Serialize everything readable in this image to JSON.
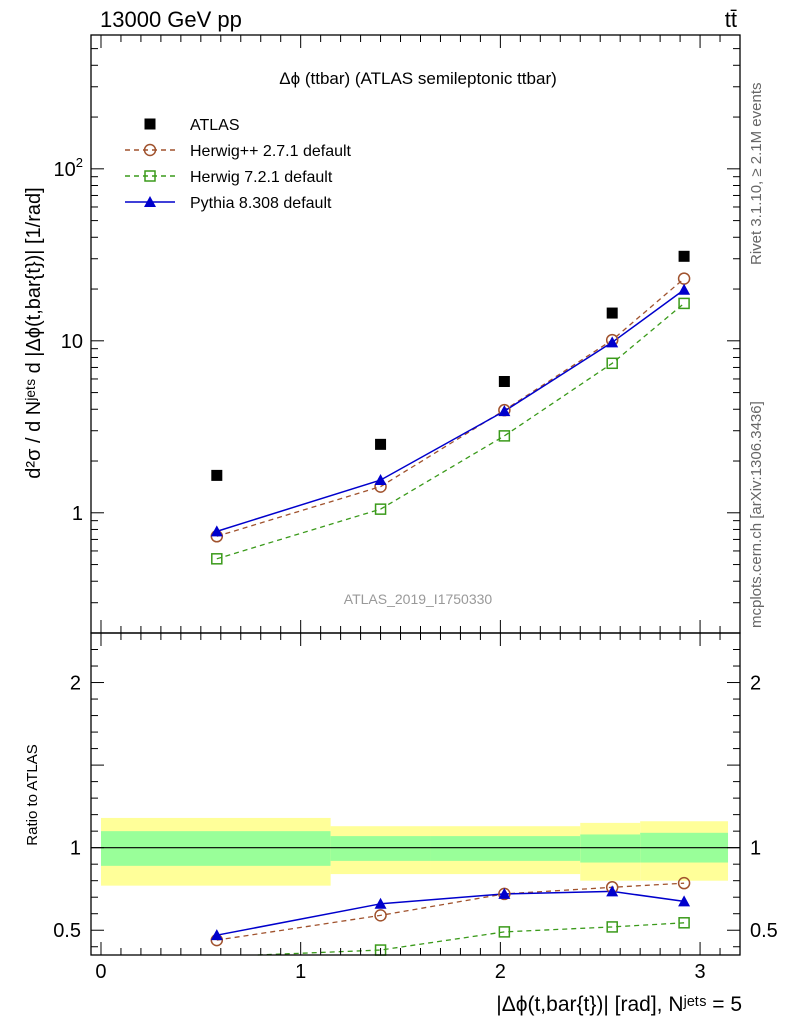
{
  "header": {
    "left": "13000 GeV pp",
    "right": "tt̄"
  },
  "side_labels": {
    "top": "Rivet 3.1.10, ≥ 2.1M events",
    "bottom": "mcplots.cern.ch [arXiv:1306.3436]"
  },
  "chart_data": [
    {
      "type": "scatter",
      "title": "Δϕ (ttbar) (ATLAS semileptonic ttbar)",
      "watermark": "ATLAS_2019_I1750330",
      "ylabel": "d²σ / d Nʲᵉᵗˢ d |Δϕ(t,bar{t})| [1/rad]",
      "xlim": [
        -0.05,
        3.2
      ],
      "ylim": [
        0.2,
        600
      ],
      "yscale": "log",
      "yticks": [
        {
          "v": 1,
          "label": "1"
        },
        {
          "v": 10,
          "label": "10"
        },
        {
          "v": 100,
          "label": "10²"
        }
      ],
      "legend_position": "top-left",
      "series": [
        {
          "name": "ATLAS",
          "marker": "filled-square",
          "color": "#000000",
          "line": "none",
          "x": [
            0.58,
            1.4,
            2.02,
            2.56,
            2.92
          ],
          "y": [
            1.65,
            2.5,
            5.8,
            14.5,
            31
          ]
        },
        {
          "name": "Herwig++ 2.7.1 default",
          "marker": "open-circle",
          "color": "#a0522d",
          "line": "dashed",
          "x": [
            0.58,
            1.4,
            2.02,
            2.56,
            2.92
          ],
          "y": [
            0.73,
            1.42,
            3.95,
            10.1,
            23
          ]
        },
        {
          "name": "Herwig 7.2.1 default",
          "marker": "open-square",
          "color": "#3a9a1a",
          "line": "dashed",
          "x": [
            0.58,
            1.4,
            2.02,
            2.56,
            2.92
          ],
          "y": [
            0.54,
            1.05,
            2.8,
            7.4,
            16.5
          ]
        },
        {
          "name": "Pythia 8.308 default",
          "marker": "filled-triangle",
          "color": "#0000cc",
          "line": "solid",
          "x": [
            0.58,
            1.4,
            2.02,
            2.56,
            2.92
          ],
          "y": [
            0.78,
            1.55,
            3.9,
            9.8,
            19.8
          ]
        }
      ]
    },
    {
      "type": "scatter",
      "ylabel": "Ratio to ATLAS",
      "xlabel": "|Δϕ(t,bar{t})| [rad], Nʲᵉᵗˢ = 5",
      "xlim": [
        -0.05,
        3.2
      ],
      "ylim": [
        0.35,
        2.3
      ],
      "yticks": [
        {
          "v": 0.5,
          "label": "0.5"
        },
        {
          "v": 1,
          "label": "1"
        },
        {
          "v": 2,
          "label": "2"
        }
      ],
      "xticks": [
        {
          "v": 0,
          "label": "0"
        },
        {
          "v": 1,
          "label": "1"
        },
        {
          "v": 2,
          "label": "2"
        },
        {
          "v": 3,
          "label": "3"
        }
      ],
      "reference_line": 1,
      "bands": [
        {
          "x0": 0,
          "x1": 1.15,
          "yellow": [
            0.77,
            1.18
          ],
          "green": [
            0.89,
            1.1
          ]
        },
        {
          "x0": 1.15,
          "x1": 1.65,
          "yellow": [
            0.84,
            1.13
          ],
          "green": [
            0.92,
            1.07
          ]
        },
        {
          "x0": 1.65,
          "x1": 2.4,
          "yellow": [
            0.84,
            1.13
          ],
          "green": [
            0.92,
            1.07
          ]
        },
        {
          "x0": 2.4,
          "x1": 2.7,
          "yellow": [
            0.8,
            1.15
          ],
          "green": [
            0.91,
            1.08
          ]
        },
        {
          "x0": 2.7,
          "x1": 3.14,
          "yellow": [
            0.8,
            1.16
          ],
          "green": [
            0.91,
            1.09
          ]
        }
      ],
      "series": [
        {
          "name": "Herwig++ 2.7.1 default",
          "marker": "open-circle",
          "color": "#a0522d",
          "line": "dashed",
          "x": [
            0.58,
            1.4,
            2.02,
            2.56,
            2.92
          ],
          "y": [
            0.44,
            0.59,
            0.72,
            0.76,
            0.785
          ]
        },
        {
          "name": "Herwig 7.2.1 default",
          "marker": "open-square",
          "color": "#3a9a1a",
          "line": "dashed",
          "x": [
            0.58,
            1.4,
            2.02,
            2.56,
            2.92
          ],
          "y": [
            0.34,
            0.38,
            0.49,
            0.52,
            0.545
          ]
        },
        {
          "name": "Pythia 8.308 default",
          "marker": "filled-triangle",
          "color": "#0000cc",
          "line": "solid",
          "x": [
            0.58,
            1.4,
            2.02,
            2.56,
            2.92
          ],
          "y": [
            0.47,
            0.66,
            0.72,
            0.735,
            0.675
          ]
        }
      ]
    }
  ]
}
